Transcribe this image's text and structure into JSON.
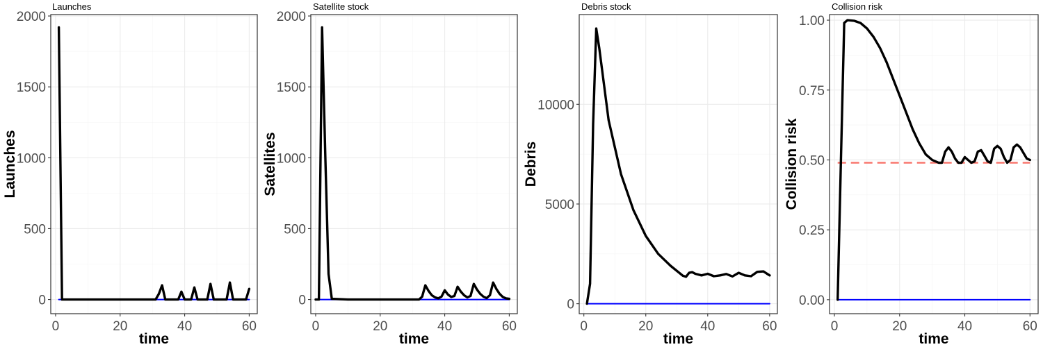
{
  "colors": {
    "main_line": "#000000",
    "zero_line": "#0000ff",
    "reference_line": "#f8766d"
  },
  "chart_data": [
    {
      "type": "line",
      "title": "Launches",
      "xlabel": "time",
      "ylabel": "Launches",
      "xlim": [
        -1.5,
        62.5
      ],
      "ylim": [
        -100,
        2010
      ],
      "xticks": [
        0,
        20,
        40,
        60
      ],
      "yticks": [
        0,
        500,
        1000,
        1500,
        2000
      ],
      "ytick_labels": [
        "0",
        "500",
        "1000",
        "1500",
        "2000"
      ],
      "grid": true,
      "series": [
        {
          "style": "main",
          "color": "#000000",
          "x": [
            1,
            2,
            3,
            10,
            20,
            31,
            32,
            33,
            34,
            35,
            38,
            39,
            40,
            41,
            42,
            43,
            44,
            46,
            47,
            48,
            49,
            50,
            52,
            53,
            54,
            55,
            56,
            58,
            59,
            60
          ],
          "y": [
            1920,
            0,
            0,
            0,
            0,
            0,
            40,
            100,
            0,
            0,
            0,
            55,
            0,
            0,
            0,
            85,
            0,
            0,
            0,
            110,
            0,
            0,
            0,
            0,
            120,
            0,
            0,
            0,
            0,
            75
          ]
        },
        {
          "style": "zero",
          "color": "#0000ff",
          "x": [
            1,
            60
          ],
          "y": [
            0,
            0
          ]
        }
      ]
    },
    {
      "type": "line",
      "title": "Satellite stock",
      "xlabel": "time",
      "ylabel": "Satellites",
      "xlim": [
        -1.5,
        62.5
      ],
      "ylim": [
        -100,
        2010
      ],
      "xticks": [
        0,
        20,
        40,
        60
      ],
      "yticks": [
        0,
        500,
        1000,
        1500,
        2000
      ],
      "ytick_labels": [
        "0",
        "500",
        "1000",
        "1500",
        "2000"
      ],
      "grid": true,
      "series": [
        {
          "style": "main",
          "color": "#000000",
          "x": [
            0,
            1,
            2,
            3,
            4,
            5,
            10,
            20,
            32,
            33,
            34,
            35,
            36,
            37,
            38,
            39,
            40,
            41,
            42,
            43,
            44,
            45,
            46,
            47,
            48,
            49,
            50,
            51,
            52,
            53,
            54,
            55,
            56,
            57,
            58,
            59,
            60
          ],
          "y": [
            0,
            0,
            1920,
            1000,
            180,
            5,
            0,
            0,
            0,
            20,
            100,
            60,
            30,
            15,
            8,
            20,
            65,
            35,
            18,
            25,
            90,
            55,
            30,
            15,
            25,
            110,
            70,
            40,
            20,
            10,
            30,
            120,
            75,
            40,
            18,
            8,
            5
          ]
        },
        {
          "style": "zero",
          "color": "#0000ff",
          "x": [
            1,
            60
          ],
          "y": [
            0,
            0
          ]
        }
      ]
    },
    {
      "type": "line",
      "title": "Debris stock",
      "xlabel": "time",
      "ylabel": "Debris",
      "xlim": [
        -1.5,
        62.5
      ],
      "ylim": [
        -500,
        14500
      ],
      "xticks": [
        0,
        20,
        40,
        60
      ],
      "yticks": [
        0,
        5000,
        10000
      ],
      "ytick_labels": [
        "0",
        "5000",
        "10000"
      ],
      "grid": true,
      "series": [
        {
          "style": "main",
          "color": "#000000",
          "x": [
            1,
            2,
            3,
            4,
            5,
            8,
            12,
            16,
            20,
            24,
            28,
            32,
            33,
            34,
            35,
            36,
            38,
            40,
            42,
            44,
            46,
            48,
            50,
            52,
            54,
            56,
            58,
            59,
            60
          ],
          "y": [
            0,
            1000,
            9000,
            13800,
            12800,
            9200,
            6500,
            4700,
            3400,
            2500,
            1900,
            1400,
            1350,
            1550,
            1580,
            1500,
            1420,
            1500,
            1380,
            1420,
            1490,
            1370,
            1550,
            1420,
            1380,
            1600,
            1620,
            1520,
            1420
          ]
        },
        {
          "style": "zero",
          "color": "#0000ff",
          "x": [
            1,
            60
          ],
          "y": [
            0,
            0
          ]
        }
      ]
    },
    {
      "type": "line",
      "title": "Collision risk",
      "xlabel": "time",
      "ylabel": "Collision risk",
      "xlim": [
        -1.5,
        62.5
      ],
      "ylim": [
        -0.05,
        1.02
      ],
      "xticks": [
        0,
        20,
        40,
        60
      ],
      "yticks": [
        0,
        0.25,
        0.5,
        0.75,
        1
      ],
      "ytick_labels": [
        "0.00",
        "0.25",
        "0.50",
        "0.75",
        "1.00"
      ],
      "grid": true,
      "series": [
        {
          "style": "main",
          "color": "#000000",
          "x": [
            1,
            2,
            3,
            4,
            6,
            8,
            10,
            12,
            14,
            16,
            18,
            20,
            22,
            24,
            26,
            28,
            30,
            32,
            33,
            34,
            35,
            36,
            37,
            38,
            39,
            40,
            41,
            42,
            43,
            44,
            45,
            46,
            47,
            48,
            49,
            50,
            51,
            52,
            53,
            54,
            55,
            56,
            57,
            58,
            59,
            60
          ],
          "y": [
            0,
            0.5,
            0.99,
            1.0,
            0.998,
            0.99,
            0.97,
            0.94,
            0.9,
            0.85,
            0.79,
            0.73,
            0.67,
            0.61,
            0.56,
            0.52,
            0.5,
            0.49,
            0.49,
            0.53,
            0.545,
            0.53,
            0.505,
            0.49,
            0.49,
            0.51,
            0.5,
            0.49,
            0.495,
            0.53,
            0.535,
            0.515,
            0.495,
            0.49,
            0.54,
            0.55,
            0.54,
            0.51,
            0.49,
            0.5,
            0.545,
            0.555,
            0.545,
            0.525,
            0.505,
            0.5
          ]
        },
        {
          "style": "zero",
          "color": "#0000ff",
          "x": [
            1,
            60
          ],
          "y": [
            0,
            0
          ]
        },
        {
          "style": "reference",
          "color": "#f8766d",
          "x": [
            1,
            60
          ],
          "y": [
            0.49,
            0.49
          ]
        }
      ]
    }
  ]
}
